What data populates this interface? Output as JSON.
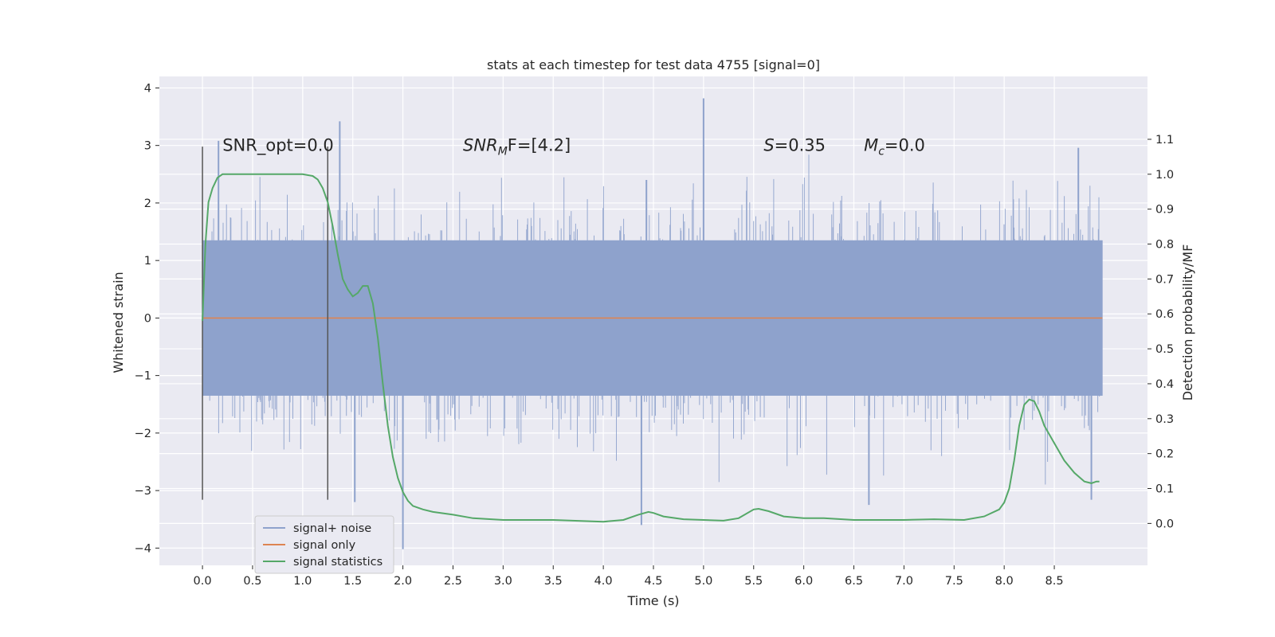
{
  "chart_data": {
    "type": "line",
    "title": "stats at each timestep for test data 4755 [signal=0]",
    "xlabel": "Time (s)",
    "ylabel": "Whitened strain",
    "y2label": "Detection probability/MF",
    "xlim": [
      -0.43,
      9.43
    ],
    "ylim": [
      -4.3,
      4.2
    ],
    "y2lim": [
      -0.12,
      1.28
    ],
    "x_ticks": [
      0.0,
      0.5,
      1.0,
      1.5,
      2.0,
      2.5,
      3.0,
      3.5,
      4.0,
      4.5,
      5.0,
      5.5,
      6.0,
      6.5,
      7.0,
      7.5,
      8.0,
      8.5
    ],
    "x_tick_labels": [
      "0.0",
      "0.5",
      "1.0",
      "1.5",
      "2.0",
      "2.5",
      "3.0",
      "3.5",
      "4.0",
      "4.5",
      "5.0",
      "5.5",
      "6.0",
      "6.5",
      "7.0",
      "7.5",
      "8.0",
      "8.5"
    ],
    "y_ticks": [
      4,
      3,
      2,
      1,
      0,
      -1,
      -2,
      -3,
      -4
    ],
    "y_tick_labels": [
      "4",
      "3",
      "2",
      "1",
      "0",
      "−1",
      "−2",
      "−3",
      "−4"
    ],
    "y2_ticks": [
      1.1,
      1.0,
      0.9,
      0.8,
      0.7,
      0.6,
      0.5,
      0.4,
      0.3,
      0.2,
      0.1,
      0.0
    ],
    "y2_tick_labels": [
      "1.1",
      "1.0",
      "0.9",
      "0.8",
      "0.7",
      "0.6",
      "0.5",
      "0.4",
      "0.3",
      "0.2",
      "0.1",
      "0.0"
    ],
    "grid": true,
    "legend_position": "lower-left",
    "colors": {
      "noise": "#8ea2cc",
      "signal": "#dd8452",
      "stats": "#55a868",
      "vline": "#555555"
    },
    "vertical_lines": [
      {
        "x": 0.0,
        "y_from": -3.16,
        "y_to": 2.98
      },
      {
        "x": 1.25,
        "y_from": -3.16,
        "y_to": 2.98
      }
    ],
    "annotations": [
      {
        "x": 0.2,
        "y": 3.0,
        "text": "SNR_opt=0.0",
        "type": "plain"
      },
      {
        "x": 2.6,
        "y": 3.0,
        "type": "sub",
        "main": "SNR",
        "sub": "M",
        "rest": "F=[4.2]"
      },
      {
        "x": 5.6,
        "y": 3.0,
        "type": "italic",
        "main": "S",
        "rest": "=0.35"
      },
      {
        "x": 6.6,
        "y": 3.0,
        "type": "sub",
        "main": "M",
        "sub": "c",
        "rest": "=0.0"
      }
    ],
    "series": [
      {
        "name": "signal+ noise",
        "axis": "left",
        "style": "noise",
        "x_start": 0.0,
        "x_end": 8.98,
        "band_low": -1.35,
        "band_high": 1.35,
        "spikes": [
          {
            "x": 5.0,
            "y": 3.82
          },
          {
            "x": 1.37,
            "y": 3.42
          },
          {
            "x": 0.16,
            "y": 3.08
          },
          {
            "x": 2.0,
            "y": -4.02
          },
          {
            "x": 4.38,
            "y": -3.6
          },
          {
            "x": 1.52,
            "y": -3.2
          },
          {
            "x": 6.65,
            "y": -3.25
          },
          {
            "x": 8.87,
            "y": -3.16
          },
          {
            "x": 8.74,
            "y": 2.96
          },
          {
            "x": 4.43,
            "y": 2.4
          }
        ]
      },
      {
        "name": "signal only",
        "axis": "left",
        "style": "signal",
        "x": [
          0.0,
          8.98
        ],
        "y": [
          0.0,
          0.0
        ]
      },
      {
        "name": "signal statistics",
        "axis": "right",
        "style": "stats",
        "x": [
          0.0,
          0.03,
          0.06,
          0.1,
          0.15,
          0.2,
          0.3,
          0.5,
          0.7,
          0.9,
          1.0,
          1.1,
          1.15,
          1.2,
          1.25,
          1.3,
          1.35,
          1.4,
          1.45,
          1.5,
          1.55,
          1.6,
          1.65,
          1.7,
          1.75,
          1.8,
          1.85,
          1.9,
          1.95,
          2.0,
          2.05,
          2.1,
          2.2,
          2.3,
          2.5,
          2.7,
          3.0,
          3.5,
          4.0,
          4.2,
          4.35,
          4.45,
          4.5,
          4.6,
          4.8,
          5.0,
          5.2,
          5.35,
          5.5,
          5.55,
          5.65,
          5.8,
          6.0,
          6.2,
          6.5,
          7.0,
          7.3,
          7.6,
          7.8,
          7.95,
          8.0,
          8.05,
          8.1,
          8.15,
          8.2,
          8.25,
          8.3,
          8.35,
          8.4,
          8.5,
          8.6,
          8.7,
          8.8,
          8.87,
          8.92,
          8.95
        ],
        "y": [
          0.58,
          0.8,
          0.92,
          0.96,
          0.99,
          1.0,
          1.0,
          1.0,
          1.0,
          1.0,
          1.0,
          0.995,
          0.985,
          0.96,
          0.92,
          0.85,
          0.77,
          0.7,
          0.67,
          0.65,
          0.66,
          0.68,
          0.68,
          0.63,
          0.53,
          0.4,
          0.28,
          0.19,
          0.13,
          0.09,
          0.065,
          0.05,
          0.04,
          0.033,
          0.025,
          0.015,
          0.01,
          0.01,
          0.005,
          0.01,
          0.025,
          0.033,
          0.03,
          0.02,
          0.012,
          0.01,
          0.008,
          0.015,
          0.04,
          0.042,
          0.035,
          0.02,
          0.015,
          0.015,
          0.01,
          0.01,
          0.012,
          0.01,
          0.02,
          0.04,
          0.06,
          0.1,
          0.18,
          0.28,
          0.34,
          0.355,
          0.35,
          0.32,
          0.28,
          0.23,
          0.18,
          0.145,
          0.12,
          0.115,
          0.12,
          0.12
        ]
      }
    ]
  }
}
